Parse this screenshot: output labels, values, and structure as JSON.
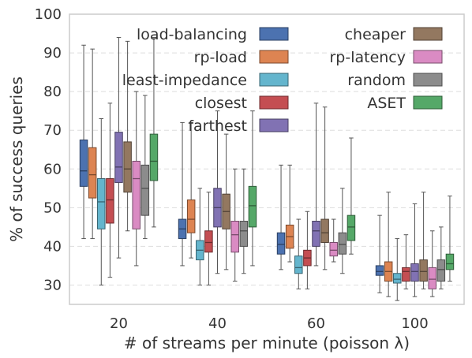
{
  "chart_data": {
    "type": "box",
    "xlabel": "# of streams per minute (poisson λ)",
    "ylabel": "% of success queries",
    "ylim": [
      25,
      100
    ],
    "yticks": [
      30,
      40,
      50,
      60,
      70,
      80,
      90,
      100
    ],
    "grid": "horizontal dashed",
    "legend": "upper right, 2 columns",
    "categories": [
      "20",
      "40",
      "60",
      "100"
    ],
    "series": [
      {
        "name": "load-balancing",
        "color": "#4C72B0",
        "boxes": [
          {
            "whislo": 42,
            "q1": 55.5,
            "med": 59.5,
            "q3": 67.5,
            "whishi": 92
          },
          {
            "whislo": 35,
            "q1": 42,
            "med": 44.5,
            "q3": 47,
            "whishi": 72
          },
          {
            "whislo": 34,
            "q1": 38,
            "med": 40.5,
            "q3": 43.5,
            "whishi": 61
          },
          {
            "whislo": 28,
            "q1": 32.5,
            "med": 33.5,
            "q3": 35,
            "whishi": 48
          }
        ]
      },
      {
        "name": "rp-load",
        "color": "#DD8452",
        "boxes": [
          {
            "whislo": 42,
            "q1": 52.5,
            "med": 58.5,
            "q3": 65.5,
            "whishi": 91
          },
          {
            "whislo": 37,
            "q1": 43.5,
            "med": 47,
            "q3": 52,
            "whishi": 72
          },
          {
            "whislo": 36,
            "q1": 39.5,
            "med": 42.5,
            "q3": 45.5,
            "whishi": 61
          },
          {
            "whislo": 27,
            "q1": 31,
            "med": 33.5,
            "q3": 36,
            "whishi": 54
          }
        ]
      },
      {
        "name": "least-impedance",
        "color": "#64B5CD",
        "boxes": [
          {
            "whislo": 30,
            "q1": 44.5,
            "med": 51.5,
            "q3": 57.5,
            "whishi": 73
          },
          {
            "whislo": 30,
            "q1": 36.5,
            "med": 39,
            "q3": 41.5,
            "whishi": 55
          },
          {
            "whislo": 29,
            "q1": 33,
            "med": 34.5,
            "q3": 37.5,
            "whishi": 47
          },
          {
            "whislo": 26,
            "q1": 30.5,
            "med": 31.5,
            "q3": 33,
            "whishi": 42
          }
        ]
      },
      {
        "name": "closest",
        "color": "#C44E52",
        "boxes": [
          {
            "whislo": 32,
            "q1": 46,
            "med": 52,
            "q3": 57.5,
            "whishi": 77
          },
          {
            "whislo": 30,
            "q1": 38.5,
            "med": 41,
            "q3": 44,
            "whishi": 54
          },
          {
            "whislo": 29,
            "q1": 35,
            "med": 37,
            "q3": 39,
            "whishi": 49
          },
          {
            "whislo": 29,
            "q1": 31,
            "med": 33.5,
            "q3": 34.5,
            "whishi": 43
          }
        ]
      },
      {
        "name": "farthest",
        "color": "#8172B3",
        "boxes": [
          {
            "whislo": 37,
            "q1": 56.5,
            "med": 60.5,
            "q3": 69.5,
            "whishi": 94
          },
          {
            "whislo": 33,
            "q1": 45,
            "med": 50,
            "q3": 55,
            "whishi": 75
          },
          {
            "whislo": 35,
            "q1": 40,
            "med": 44,
            "q3": 46.5,
            "whishi": 77
          },
          {
            "whislo": 27,
            "q1": 31,
            "med": 33.5,
            "q3": 35.5,
            "whishi": 51
          }
        ]
      },
      {
        "name": "cheaper",
        "color": "#937860",
        "boxes": [
          {
            "whislo": 44,
            "q1": 54,
            "med": 60,
            "q3": 67,
            "whishi": 93
          },
          {
            "whislo": 34,
            "q1": 44.5,
            "med": 49,
            "q3": 53.5,
            "whishi": 69
          },
          {
            "whislo": 34,
            "q1": 41,
            "med": 43.5,
            "q3": 47,
            "whishi": 76
          },
          {
            "whislo": 29,
            "q1": 31,
            "med": 33.5,
            "q3": 36.5,
            "whishi": 54
          }
        ]
      },
      {
        "name": "rp-latency",
        "color": "#DA8BC3",
        "boxes": [
          {
            "whislo": 35,
            "q1": 44.5,
            "med": 57.5,
            "q3": 62,
            "whishi": 80
          },
          {
            "whislo": 31,
            "q1": 38.5,
            "med": 43,
            "q3": 46.5,
            "whishi": 60
          },
          {
            "whislo": 36,
            "q1": 37.5,
            "med": 39,
            "q3": 41,
            "whishi": 47
          },
          {
            "whislo": 27,
            "q1": 29,
            "med": 31.5,
            "q3": 34.5,
            "whishi": 44
          }
        ]
      },
      {
        "name": "random",
        "color": "#8C8C8C",
        "boxes": [
          {
            "whislo": 42,
            "q1": 48,
            "med": 55,
            "q3": 61,
            "whishi": 79
          },
          {
            "whislo": 33,
            "q1": 40,
            "med": 44,
            "q3": 46.5,
            "whishi": 60
          },
          {
            "whislo": 33,
            "q1": 38,
            "med": 40.5,
            "q3": 43.5,
            "whishi": 55
          },
          {
            "whislo": 29,
            "q1": 31,
            "med": 34,
            "q3": 36.5,
            "whishi": 45
          }
        ]
      },
      {
        "name": "ASET",
        "color": "#55A868",
        "boxes": [
          {
            "whislo": 45,
            "q1": 57,
            "med": 62,
            "q3": 69,
            "whishi": 94
          },
          {
            "whislo": 35,
            "q1": 45,
            "med": 50.5,
            "q3": 55.5,
            "whishi": 75
          },
          {
            "whislo": 38,
            "q1": 41.5,
            "med": 45,
            "q3": 48,
            "whishi": 68
          },
          {
            "whislo": 31,
            "q1": 34,
            "med": 35.5,
            "q3": 38,
            "whishi": 53
          }
        ]
      }
    ]
  }
}
